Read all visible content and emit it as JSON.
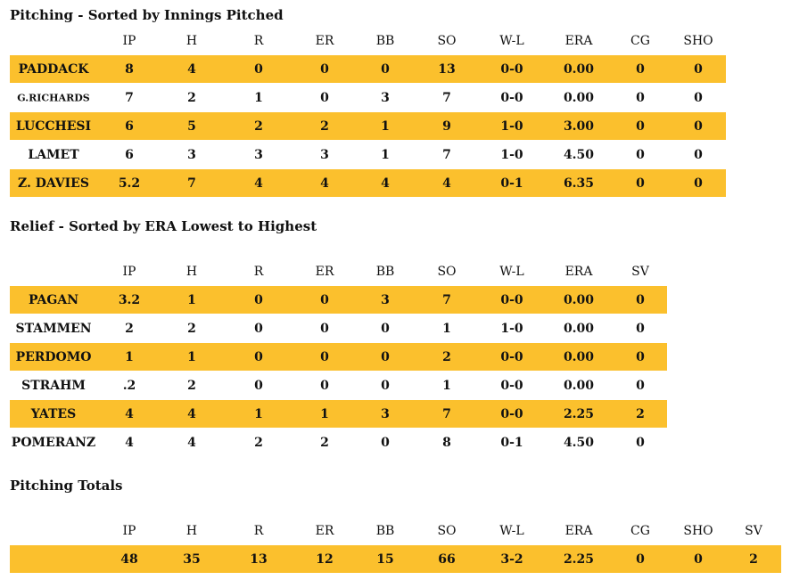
{
  "sections": {
    "starters": {
      "title": "Pitching - Sorted by Innings Pitched",
      "headers": [
        "IP",
        "H",
        "R",
        "ER",
        "BB",
        "SO",
        "W-L",
        "ERA",
        "CG",
        "SHO"
      ],
      "rows": [
        {
          "name": "PADDACK",
          "values": [
            "8",
            "4",
            "0",
            "0",
            "0",
            "13",
            "0-0",
            "0.00",
            "0",
            "0"
          ]
        },
        {
          "name": "G.RICHARDS",
          "values": [
            "7",
            "2",
            "1",
            "0",
            "3",
            "7",
            "0-0",
            "0.00",
            "0",
            "0"
          ]
        },
        {
          "name": "LUCCHESI",
          "values": [
            "6",
            "5",
            "2",
            "2",
            "1",
            "9",
            "1-0",
            "3.00",
            "0",
            "0"
          ]
        },
        {
          "name": "LAMET",
          "values": [
            "6",
            "3",
            "3",
            "3",
            "1",
            "7",
            "1-0",
            "4.50",
            "0",
            "0"
          ]
        },
        {
          "name": "Z. DAVIES",
          "values": [
            "5.2",
            "7",
            "4",
            "4",
            "4",
            "4",
            "0-1",
            "6.35",
            "0",
            "0"
          ]
        }
      ]
    },
    "relief": {
      "title": "Relief - Sorted by ERA Lowest to Highest",
      "headers": [
        "IP",
        "H",
        "R",
        "ER",
        "BB",
        "SO",
        "W-L",
        "ERA",
        "SV"
      ],
      "rows": [
        {
          "name": "PAGAN",
          "values": [
            "3.2",
            "1",
            "0",
            "0",
            "3",
            "7",
            "0-0",
            "0.00",
            "0"
          ]
        },
        {
          "name": "STAMMEN",
          "values": [
            "2",
            "2",
            "0",
            "0",
            "0",
            "1",
            "1-0",
            "0.00",
            "0"
          ]
        },
        {
          "name": "PERDOMO",
          "values": [
            "1",
            "1",
            "0",
            "0",
            "0",
            "2",
            "0-0",
            "0.00",
            "0"
          ]
        },
        {
          "name": "STRAHM",
          "values": [
            ".2",
            "2",
            "0",
            "0",
            "0",
            "1",
            "0-0",
            "0.00",
            "0"
          ]
        },
        {
          "name": "YATES",
          "values": [
            "4",
            "4",
            "1",
            "1",
            "3",
            "7",
            "0-0",
            "2.25",
            "2"
          ]
        },
        {
          "name": "POMERANZ",
          "values": [
            "4",
            "4",
            "2",
            "2",
            "0",
            "8",
            "0-1",
            "4.50",
            "0"
          ]
        }
      ]
    },
    "totals": {
      "title": "Pitching Totals",
      "headers": [
        "IP",
        "H",
        "R",
        "ER",
        "BB",
        "SO",
        "W-L",
        "ERA",
        "CG",
        "SHO",
        "SV"
      ],
      "rows": [
        {
          "name": "",
          "values": [
            "48",
            "35",
            "13",
            "12",
            "15",
            "66",
            "3-2",
            "2.25",
            "0",
            "0",
            "2"
          ]
        }
      ]
    }
  },
  "colors": {
    "gold": "#fbc02d",
    "white": "#ffffff",
    "text": "#111111"
  }
}
